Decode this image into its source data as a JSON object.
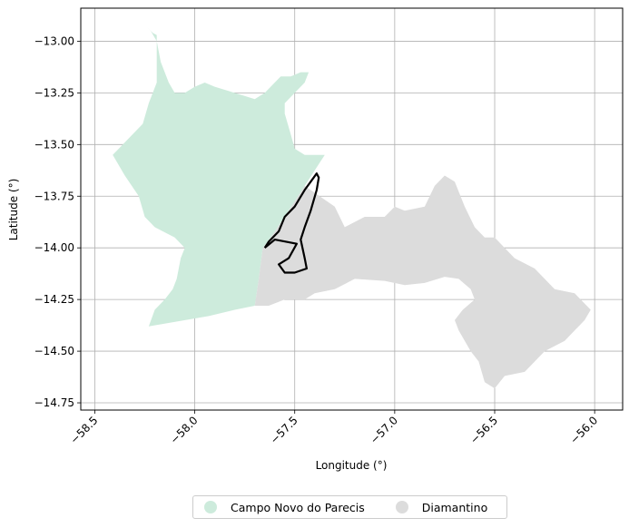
{
  "chart_data": {
    "type": "map",
    "xlabel": "Longitude (°)",
    "ylabel": "Latitude (°)",
    "xlim": [
      -58.57,
      -55.86
    ],
    "ylim": [
      -14.785,
      -12.84
    ],
    "xticks": [
      -58.5,
      -58.0,
      -57.5,
      -57.0,
      -56.5,
      -56.0
    ],
    "xtick_labels": [
      "−58.5",
      "−58.0",
      "−57.5",
      "−57.0",
      "−56.5",
      "−56.0"
    ],
    "yticks": [
      -13.0,
      -13.25,
      -13.5,
      -13.75,
      -14.0,
      -14.25,
      -14.5,
      -14.75
    ],
    "ytick_labels": [
      "−13.00",
      "−13.25",
      "−13.50",
      "−13.75",
      "−14.00",
      "−14.25",
      "−14.50",
      "−14.75"
    ],
    "grid": true,
    "legend_position": "bottom-center",
    "regions": [
      {
        "name": "Campo Novo do Parecis",
        "color": "#cdebdc",
        "polygon": [
          [
            -58.24,
            -12.93
          ],
          [
            -58.21,
            -12.96
          ],
          [
            -58.19,
            -12.97
          ],
          [
            -58.19,
            -13.1
          ],
          [
            -58.19,
            -13.2
          ],
          [
            -58.23,
            -13.3
          ],
          [
            -58.26,
            -13.4
          ],
          [
            -58.36,
            -13.5
          ],
          [
            -58.41,
            -13.55
          ],
          [
            -58.35,
            -13.65
          ],
          [
            -58.28,
            -13.75
          ],
          [
            -58.25,
            -13.85
          ],
          [
            -58.2,
            -13.9
          ],
          [
            -58.1,
            -13.95
          ],
          [
            -58.05,
            -14.0
          ],
          [
            -58.07,
            -14.05
          ],
          [
            -58.09,
            -14.15
          ],
          [
            -58.11,
            -14.2
          ],
          [
            -58.15,
            -14.25
          ],
          [
            -58.2,
            -14.3
          ],
          [
            -58.23,
            -14.38
          ],
          [
            -57.93,
            -14.33
          ],
          [
            -57.8,
            -14.3
          ],
          [
            -57.7,
            -14.28
          ],
          [
            -57.68,
            -14.15
          ],
          [
            -57.66,
            -14.0
          ],
          [
            -57.62,
            -13.95
          ],
          [
            -57.55,
            -13.85
          ],
          [
            -57.45,
            -13.7
          ],
          [
            -57.35,
            -13.55
          ],
          [
            -57.45,
            -13.55
          ],
          [
            -57.5,
            -13.52
          ],
          [
            -57.52,
            -13.45
          ],
          [
            -57.55,
            -13.35
          ],
          [
            -57.55,
            -13.3
          ],
          [
            -57.5,
            -13.25
          ],
          [
            -57.45,
            -13.2
          ],
          [
            -57.43,
            -13.15
          ],
          [
            -57.47,
            -13.15
          ],
          [
            -57.52,
            -13.17
          ],
          [
            -57.57,
            -13.17
          ],
          [
            -57.6,
            -13.2
          ],
          [
            -57.65,
            -13.25
          ],
          [
            -57.7,
            -13.28
          ],
          [
            -57.8,
            -13.25
          ],
          [
            -57.9,
            -13.22
          ],
          [
            -57.95,
            -13.2
          ],
          [
            -58.0,
            -13.22
          ],
          [
            -58.05,
            -13.25
          ],
          [
            -58.1,
            -13.25
          ],
          [
            -58.13,
            -13.2
          ],
          [
            -58.17,
            -13.1
          ],
          [
            -58.19,
            -13.0
          ],
          [
            -58.22,
            -12.95
          ]
        ]
      },
      {
        "name": "Diamantino",
        "color": "#dcdcdc",
        "polygon": [
          [
            -57.45,
            -13.7
          ],
          [
            -57.3,
            -13.8
          ],
          [
            -57.25,
            -13.9
          ],
          [
            -57.15,
            -13.85
          ],
          [
            -57.05,
            -13.85
          ],
          [
            -57.0,
            -13.8
          ],
          [
            -56.95,
            -13.82
          ],
          [
            -56.85,
            -13.8
          ],
          [
            -56.8,
            -13.7
          ],
          [
            -56.75,
            -13.65
          ],
          [
            -56.7,
            -13.68
          ],
          [
            -56.65,
            -13.8
          ],
          [
            -56.6,
            -13.9
          ],
          [
            -56.55,
            -13.95
          ],
          [
            -56.5,
            -13.95
          ],
          [
            -56.45,
            -14.0
          ],
          [
            -56.4,
            -14.05
          ],
          [
            -56.3,
            -14.1
          ],
          [
            -56.2,
            -14.2
          ],
          [
            -56.1,
            -14.22
          ],
          [
            -56.02,
            -14.3
          ],
          [
            -56.05,
            -14.35
          ],
          [
            -56.1,
            -14.4
          ],
          [
            -56.15,
            -14.45
          ],
          [
            -56.25,
            -14.5
          ],
          [
            -56.3,
            -14.55
          ],
          [
            -56.35,
            -14.6
          ],
          [
            -56.45,
            -14.62
          ],
          [
            -56.5,
            -14.68
          ],
          [
            -56.55,
            -14.65
          ],
          [
            -56.58,
            -14.55
          ],
          [
            -56.62,
            -14.5
          ],
          [
            -56.65,
            -14.45
          ],
          [
            -56.68,
            -14.4
          ],
          [
            -56.7,
            -14.35
          ],
          [
            -56.66,
            -14.3
          ],
          [
            -56.6,
            -14.25
          ],
          [
            -56.62,
            -14.2
          ],
          [
            -56.68,
            -14.15
          ],
          [
            -56.75,
            -14.14
          ],
          [
            -56.85,
            -14.17
          ],
          [
            -56.95,
            -14.18
          ],
          [
            -57.05,
            -14.16
          ],
          [
            -57.2,
            -14.15
          ],
          [
            -57.3,
            -14.2
          ],
          [
            -57.4,
            -14.22
          ],
          [
            -57.45,
            -14.25
          ],
          [
            -57.55,
            -14.25
          ],
          [
            -57.63,
            -14.28
          ],
          [
            -57.7,
            -14.28
          ],
          [
            -57.68,
            -14.15
          ],
          [
            -57.66,
            -14.0
          ],
          [
            -57.62,
            -13.95
          ],
          [
            -57.55,
            -13.85
          ]
        ]
      }
    ],
    "boundary": {
      "color": "#000000",
      "polyline": [
        [
          -57.65,
          -14.0
        ],
        [
          -57.63,
          -13.97
        ],
        [
          -57.58,
          -13.92
        ],
        [
          -57.55,
          -13.85
        ],
        [
          -57.5,
          -13.8
        ],
        [
          -57.45,
          -13.72
        ],
        [
          -57.42,
          -13.68
        ],
        [
          -57.39,
          -13.64
        ],
        [
          -57.38,
          -13.66
        ],
        [
          -57.39,
          -13.72
        ],
        [
          -57.42,
          -13.82
        ],
        [
          -57.45,
          -13.9
        ],
        [
          -57.47,
          -13.96
        ],
        [
          -57.45,
          -14.05
        ],
        [
          -57.44,
          -14.1
        ],
        [
          -57.5,
          -14.12
        ],
        [
          -57.55,
          -14.12
        ],
        [
          -57.58,
          -14.08
        ],
        [
          -57.53,
          -14.05
        ],
        [
          -57.49,
          -13.98
        ],
        [
          -57.6,
          -13.96
        ],
        [
          -57.65,
          -14.0
        ]
      ]
    },
    "legend": [
      {
        "label": "Campo Novo do Parecis",
        "color": "#cdebdc"
      },
      {
        "label": "Diamantino",
        "color": "#dcdcdc"
      }
    ]
  }
}
